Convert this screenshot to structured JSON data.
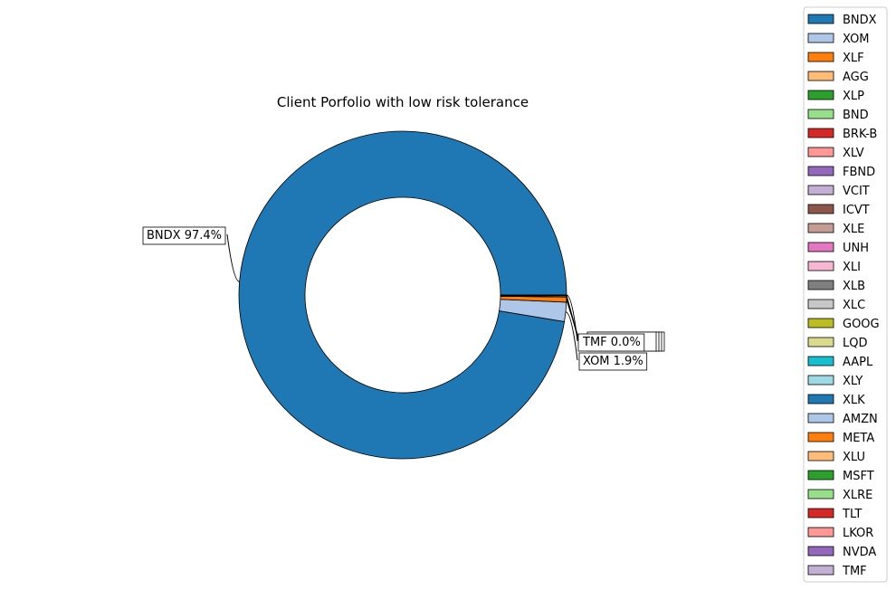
{
  "chart_data": {
    "type": "pie",
    "variant": "donut",
    "title": "Client Porfolio with low risk tolerance",
    "legend_placement": "right",
    "slices": [
      {
        "name": "BNDX",
        "value": 97.4,
        "color": "#1f77b4",
        "label": "BNDX 97.4%"
      },
      {
        "name": "XOM",
        "value": 1.9,
        "color": "#aec7e8",
        "label": "XOM 1.9%"
      },
      {
        "name": "XLF",
        "value": 0.5,
        "color": "#ff7f0e",
        "label": ""
      },
      {
        "name": "AGG",
        "value": 0.1,
        "color": "#ffbb78",
        "label": ""
      },
      {
        "name": "XLP",
        "value": 0.05,
        "color": "#2ca02c",
        "label": ""
      },
      {
        "name": "BND",
        "value": 0.05,
        "color": "#98df8a",
        "label": ""
      },
      {
        "name": "BRK-B",
        "value": 0.0,
        "color": "#d62728",
        "label": ""
      },
      {
        "name": "XLV",
        "value": 0.0,
        "color": "#ff9896",
        "label": ""
      },
      {
        "name": "FBND",
        "value": 0.0,
        "color": "#9467bd",
        "label": ""
      },
      {
        "name": "VCIT",
        "value": 0.0,
        "color": "#c5b0d5",
        "label": ""
      },
      {
        "name": "ICVT",
        "value": 0.0,
        "color": "#8c564b",
        "label": ""
      },
      {
        "name": "XLE",
        "value": 0.0,
        "color": "#c49c94",
        "label": ""
      },
      {
        "name": "UNH",
        "value": 0.0,
        "color": "#e377c2",
        "label": ""
      },
      {
        "name": "XLI",
        "value": 0.0,
        "color": "#f7b6d2",
        "label": ""
      },
      {
        "name": "XLB",
        "value": 0.0,
        "color": "#7f7f7f",
        "label": ""
      },
      {
        "name": "XLC",
        "value": 0.0,
        "color": "#c7c7c7",
        "label": ""
      },
      {
        "name": "GOOG",
        "value": 0.0,
        "color": "#bcbd22",
        "label": ""
      },
      {
        "name": "LQD",
        "value": 0.0,
        "color": "#dbdb8d",
        "label": ""
      },
      {
        "name": "AAPL",
        "value": 0.0,
        "color": "#17becf",
        "label": ""
      },
      {
        "name": "XLY",
        "value": 0.0,
        "color": "#9edae5",
        "label": ""
      },
      {
        "name": "XLK",
        "value": 0.0,
        "color": "#1f77b4",
        "label": ""
      },
      {
        "name": "AMZN",
        "value": 0.0,
        "color": "#aec7e8",
        "label": ""
      },
      {
        "name": "META",
        "value": 0.0,
        "color": "#ff7f0e",
        "label": ""
      },
      {
        "name": "XLU",
        "value": 0.0,
        "color": "#ffbb78",
        "label": ""
      },
      {
        "name": "MSFT",
        "value": 0.0,
        "color": "#2ca02c",
        "label": ""
      },
      {
        "name": "XLRE",
        "value": 0.0,
        "color": "#98df8a",
        "label": ""
      },
      {
        "name": "TLT",
        "value": 0.0,
        "color": "#d62728",
        "label": ""
      },
      {
        "name": "LKOR",
        "value": 0.0,
        "color": "#ff9896",
        "label": ""
      },
      {
        "name": "NVDA",
        "value": 0.0,
        "color": "#9467bd",
        "label": ""
      },
      {
        "name": "TMF",
        "value": 0.0,
        "color": "#c5b0d5",
        "label": "TMF 0.0%"
      }
    ]
  }
}
